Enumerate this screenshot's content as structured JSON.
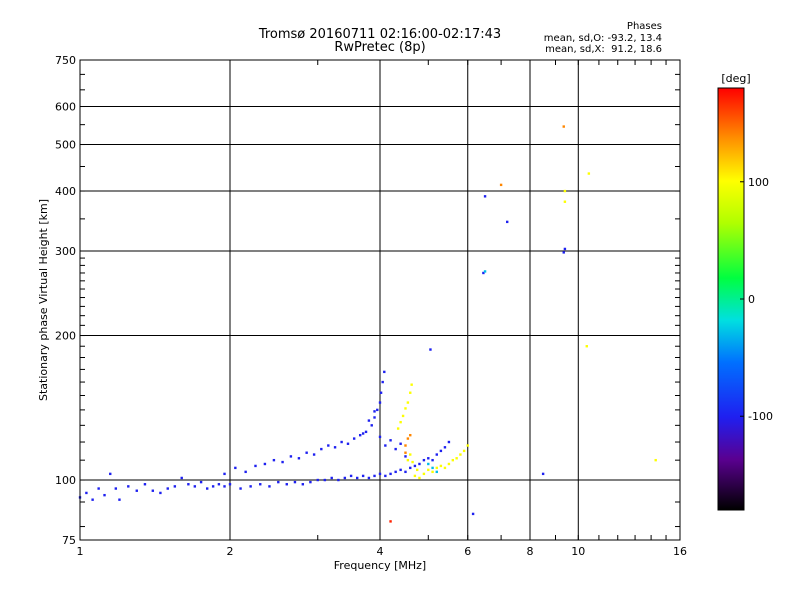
{
  "header": {
    "title": "Tromsø 20160711 02:16:00-02:17:43",
    "subtitle": "RwPretec (8p)",
    "phases_title": "Phases",
    "phases_o": "mean, sd,O: -93.2, 13.4",
    "phases_x": "mean, sd,X:  91.2, 18.6"
  },
  "colorbar": {
    "unit": "[deg]",
    "min": -180,
    "max": 180,
    "tick_labels": [
      {
        "value": 100,
        "label": "100"
      },
      {
        "value": 0,
        "label": "0"
      },
      {
        "value": -100,
        "label": "-100"
      }
    ]
  },
  "chart_data": {
    "type": "scatter",
    "xlabel": "Frequency [MHz]",
    "ylabel": "Stationary phase Virtual Height [km]",
    "xscale": "log",
    "yscale": "log",
    "xlim": [
      1,
      16
    ],
    "ylim": [
      75,
      750
    ],
    "grid": true,
    "x_ticks": [
      {
        "value": 1,
        "label": "1"
      },
      {
        "value": 2,
        "label": "2"
      },
      {
        "value": 4,
        "label": "4"
      },
      {
        "value": 6,
        "label": "6"
      },
      {
        "value": 8,
        "label": "8"
      },
      {
        "value": 10,
        "label": "10"
      },
      {
        "value": 16,
        "label": "16"
      }
    ],
    "y_ticks": [
      {
        "value": 75,
        "label": "75"
      },
      {
        "value": 100,
        "label": "100"
      },
      {
        "value": 200,
        "label": "200"
      },
      {
        "value": 300,
        "label": "300"
      },
      {
        "value": 400,
        "label": "400"
      },
      {
        "value": 500,
        "label": "500"
      },
      {
        "value": 600,
        "label": "600"
      },
      {
        "value": 750,
        "label": "750"
      }
    ],
    "series": [
      {
        "description_color": "blue",
        "phase_deg": -100,
        "points": [
          [
            1.0,
            92
          ],
          [
            1.03,
            94
          ],
          [
            1.06,
            91
          ],
          [
            1.09,
            96
          ],
          [
            1.12,
            93
          ],
          [
            1.15,
            103
          ],
          [
            1.18,
            96
          ],
          [
            1.2,
            91
          ],
          [
            1.25,
            97
          ],
          [
            1.3,
            95
          ],
          [
            1.35,
            98
          ],
          [
            1.4,
            95
          ],
          [
            1.45,
            94
          ],
          [
            1.5,
            96
          ],
          [
            1.55,
            97
          ],
          [
            1.6,
            101
          ],
          [
            1.65,
            98
          ],
          [
            1.7,
            97
          ],
          [
            1.75,
            99
          ],
          [
            1.8,
            96
          ],
          [
            1.85,
            97
          ],
          [
            1.9,
            98
          ],
          [
            1.95,
            97
          ],
          [
            2.0,
            98
          ],
          [
            2.1,
            96
          ],
          [
            2.2,
            97
          ],
          [
            2.3,
            98
          ],
          [
            2.4,
            97
          ],
          [
            2.5,
            99
          ],
          [
            2.6,
            98
          ],
          [
            2.7,
            99
          ],
          [
            2.8,
            98
          ],
          [
            2.9,
            99
          ],
          [
            3.0,
            100
          ],
          [
            3.1,
            100
          ],
          [
            3.2,
            101
          ],
          [
            3.3,
            100
          ],
          [
            3.4,
            101
          ],
          [
            3.5,
            102
          ],
          [
            3.6,
            101
          ],
          [
            3.7,
            102
          ],
          [
            3.8,
            101
          ],
          [
            3.9,
            102
          ],
          [
            4.0,
            103
          ],
          [
            4.1,
            102
          ],
          [
            4.2,
            103
          ],
          [
            4.3,
            104
          ],
          [
            4.4,
            105
          ],
          [
            4.5,
            104
          ],
          [
            4.6,
            106
          ],
          [
            4.7,
            107
          ],
          [
            4.8,
            108
          ],
          [
            4.9,
            110
          ],
          [
            5.0,
            111
          ],
          [
            5.1,
            110
          ],
          [
            5.2,
            113
          ],
          [
            5.3,
            115
          ],
          [
            5.4,
            117
          ],
          [
            5.5,
            120
          ],
          [
            1.95,
            103
          ],
          [
            2.05,
            106
          ],
          [
            2.15,
            104
          ],
          [
            2.25,
            107
          ],
          [
            2.35,
            108
          ],
          [
            2.45,
            110
          ],
          [
            2.55,
            109
          ],
          [
            2.65,
            112
          ],
          [
            2.75,
            111
          ],
          [
            2.85,
            114
          ],
          [
            2.95,
            113
          ],
          [
            3.05,
            116
          ],
          [
            3.15,
            118
          ],
          [
            3.25,
            117
          ],
          [
            3.35,
            120
          ],
          [
            3.45,
            119
          ],
          [
            3.55,
            122
          ],
          [
            3.65,
            124
          ],
          [
            3.75,
            126
          ],
          [
            3.85,
            130
          ],
          [
            3.9,
            135
          ],
          [
            3.95,
            140
          ],
          [
            4.0,
            145
          ],
          [
            4.02,
            152
          ],
          [
            4.05,
            160
          ],
          [
            4.08,
            168
          ],
          [
            3.7,
            125
          ],
          [
            3.8,
            133
          ],
          [
            3.9,
            139
          ],
          [
            4.0,
            123
          ],
          [
            4.1,
            118
          ],
          [
            4.2,
            121
          ],
          [
            4.3,
            116
          ],
          [
            4.4,
            119
          ],
          [
            4.5,
            112
          ],
          [
            5.05,
            187
          ],
          [
            6.15,
            85
          ],
          [
            6.5,
            390
          ],
          [
            6.45,
            270
          ],
          [
            7.2,
            345
          ],
          [
            8.5,
            103
          ],
          [
            9.4,
            303
          ],
          [
            9.35,
            298
          ]
        ]
      },
      {
        "description_color": "yellow",
        "phase_deg": 100,
        "points": [
          [
            4.35,
            128
          ],
          [
            4.4,
            132
          ],
          [
            4.45,
            136
          ],
          [
            4.5,
            141
          ],
          [
            4.55,
            145
          ],
          [
            4.6,
            152
          ],
          [
            4.63,
            158
          ],
          [
            4.55,
            110
          ],
          [
            4.6,
            113
          ],
          [
            4.65,
            109
          ],
          [
            4.7,
            102
          ],
          [
            4.75,
            105
          ],
          [
            4.8,
            101
          ],
          [
            4.9,
            103
          ],
          [
            5.0,
            105
          ],
          [
            5.1,
            104
          ],
          [
            5.2,
            106
          ],
          [
            5.3,
            107
          ],
          [
            5.4,
            106
          ],
          [
            5.5,
            108
          ],
          [
            5.6,
            110
          ],
          [
            5.7,
            111
          ],
          [
            5.8,
            113
          ],
          [
            5.9,
            115
          ],
          [
            6.0,
            118
          ],
          [
            9.4,
            400
          ],
          [
            9.4,
            380
          ],
          [
            10.5,
            435
          ],
          [
            10.4,
            190
          ],
          [
            14.3,
            110
          ]
        ]
      },
      {
        "description_color": "orange",
        "phase_deg": 140,
        "points": [
          [
            4.5,
            118
          ],
          [
            4.55,
            122
          ],
          [
            4.6,
            124
          ],
          [
            4.5,
            114
          ],
          [
            7.0,
            412
          ],
          [
            9.35,
            545
          ]
        ]
      },
      {
        "description_color": "red",
        "phase_deg": 170,
        "points": [
          [
            4.2,
            82
          ]
        ]
      },
      {
        "description_color": "cyan",
        "phase_deg": -30,
        "points": [
          [
            5.1,
            106
          ],
          [
            5.2,
            104
          ],
          [
            5.0,
            108
          ],
          [
            6.5,
            272
          ]
        ]
      }
    ]
  }
}
